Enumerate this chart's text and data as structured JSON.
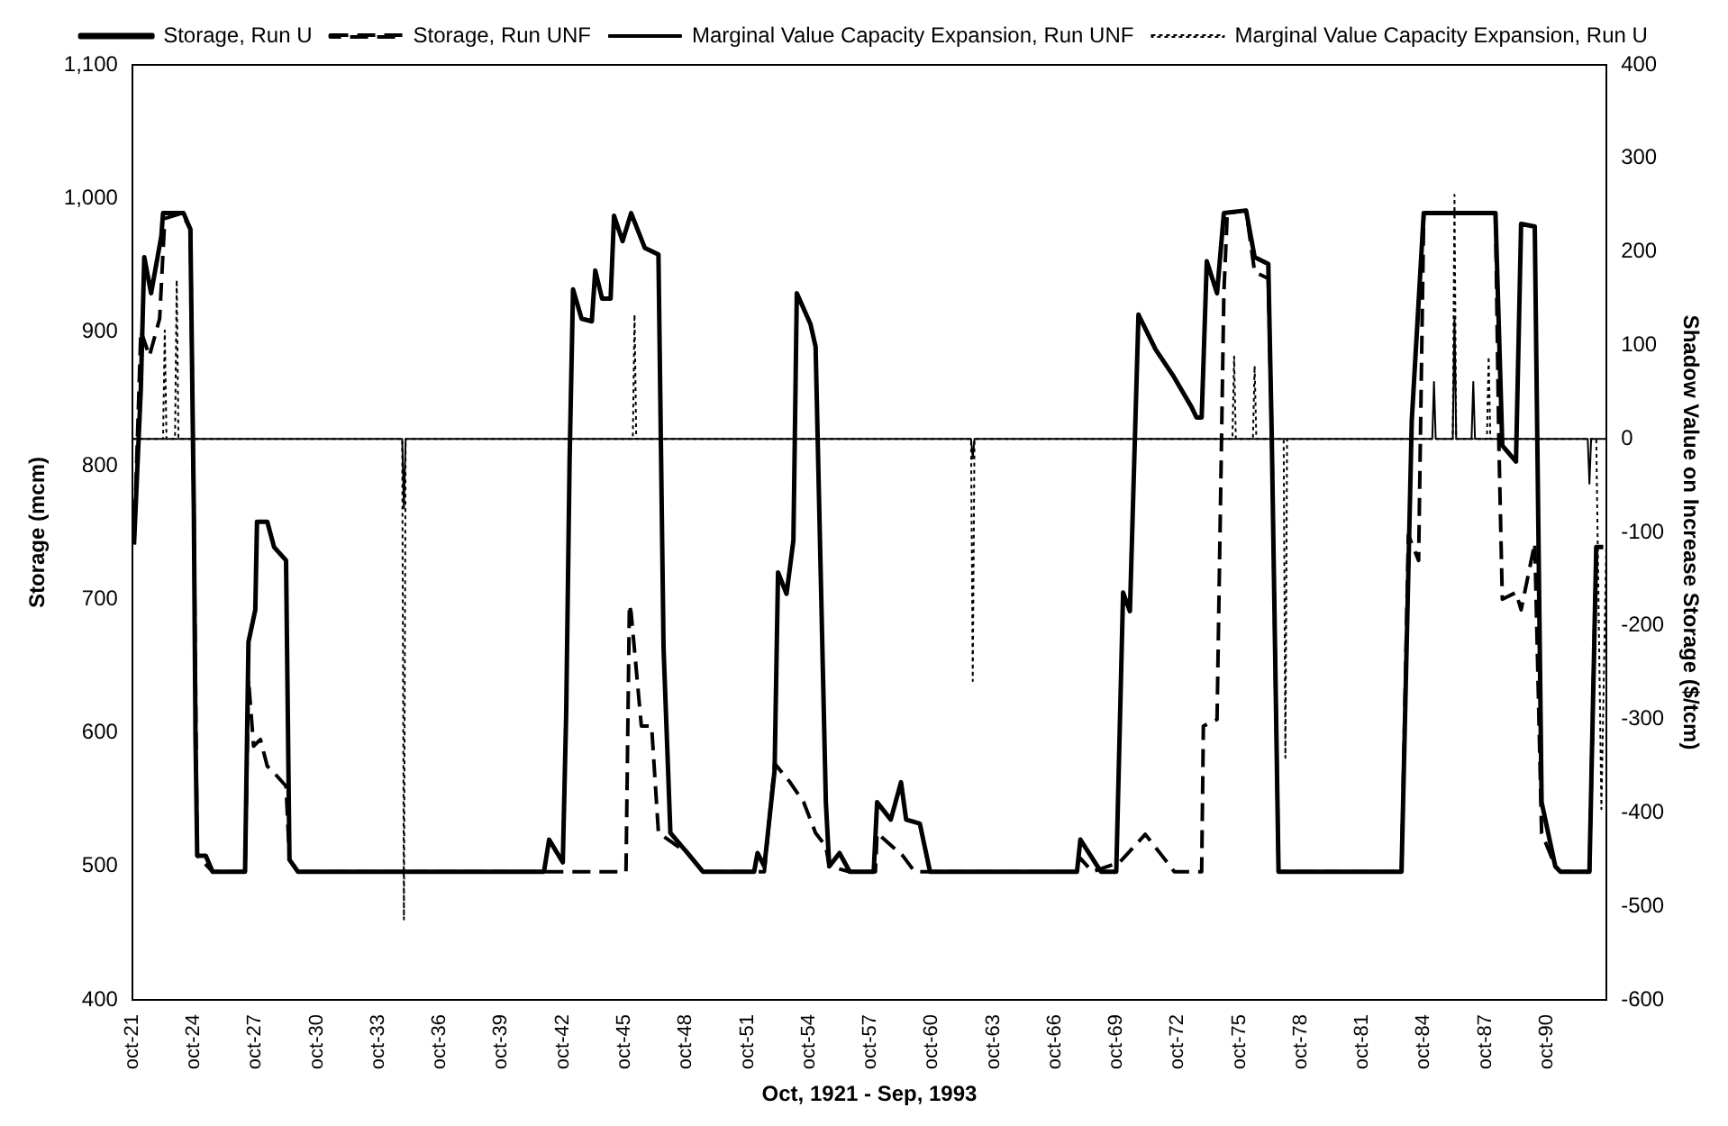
{
  "chart_data": {
    "type": "line",
    "xlabel": "Oct, 1921 - Sep, 1993",
    "ylabel": "Storage (mcm)",
    "y2label": "Shadow Value on Increase Storage ($/tcm)",
    "xlim": [
      "1921-10",
      "1993-09"
    ],
    "xticks": [
      {
        "value": "1921-10",
        "label": "oct-21"
      },
      {
        "value": "1924-10",
        "label": "oct-24"
      },
      {
        "value": "1927-10",
        "label": "oct-27"
      },
      {
        "value": "1930-10",
        "label": "oct-30"
      },
      {
        "value": "1933-10",
        "label": "oct-33"
      },
      {
        "value": "1936-10",
        "label": "oct-36"
      },
      {
        "value": "1939-10",
        "label": "oct-39"
      },
      {
        "value": "1942-10",
        "label": "oct-42"
      },
      {
        "value": "1945-10",
        "label": "oct-45"
      },
      {
        "value": "1948-10",
        "label": "oct-48"
      },
      {
        "value": "1951-10",
        "label": "oct-51"
      },
      {
        "value": "1954-10",
        "label": "oct-54"
      },
      {
        "value": "1957-10",
        "label": "oct-57"
      },
      {
        "value": "1960-10",
        "label": "oct-60"
      },
      {
        "value": "1963-10",
        "label": "oct-63"
      },
      {
        "value": "1966-10",
        "label": "oct-66"
      },
      {
        "value": "1969-10",
        "label": "oct-69"
      },
      {
        "value": "1972-10",
        "label": "oct-72"
      },
      {
        "value": "1975-10",
        "label": "oct-75"
      },
      {
        "value": "1978-10",
        "label": "oct-78"
      },
      {
        "value": "1981-10",
        "label": "oct-81"
      },
      {
        "value": "1984-10",
        "label": "oct-84"
      },
      {
        "value": "1987-10",
        "label": "oct-87"
      },
      {
        "value": "1990-10",
        "label": "oct-90"
      }
    ],
    "ylim": [
      400,
      1100
    ],
    "yticks": [
      400,
      500,
      600,
      700,
      800,
      900,
      {
        "value": 1000,
        "label": "1,000"
      },
      {
        "value": 1100,
        "label": "1,100"
      }
    ],
    "y2lim": [
      -600,
      400
    ],
    "y2ticks": [
      -600,
      -500,
      -400,
      -300,
      -200,
      -100,
      0,
      100,
      200,
      300,
      400
    ],
    "grid": false,
    "legend": "top",
    "marker": "none",
    "series": [
      {
        "name": "Storage, Run U",
        "color": "#000000",
        "line_style": "solid",
        "x": [
          "1921-11",
          "1922-03",
          "1922-05",
          "1922-09",
          "1923-03",
          "1923-04",
          "1924-04",
          "1924-08",
          "1924-10",
          "1924-11",
          "1924-12",
          "1925-05",
          "1925-09",
          "1927-04",
          "1927-06",
          "1927-10",
          "1927-11",
          "1928-05",
          "1928-09",
          "1929-04",
          "1929-06",
          "1929-11",
          "1941-11",
          "1942-02",
          "1942-10",
          "1942-12",
          "1943-02",
          "1943-04",
          "1943-09",
          "1944-03",
          "1944-05",
          "1944-09",
          "1945-02",
          "1945-04",
          "1945-09",
          "1946-02",
          "1946-10",
          "1947-06",
          "1947-09",
          "1948-01",
          "1948-11",
          "1949-08",
          "1952-02",
          "1952-04",
          "1952-08",
          "1953-02",
          "1953-04",
          "1953-09",
          "1954-01",
          "1954-03",
          "1954-11",
          "1955-02",
          "1955-08",
          "1955-10",
          "1956-04",
          "1956-10",
          "1957-12",
          "1958-02",
          "1958-10",
          "1959-04",
          "1959-07",
          "1960-03",
          "1960-09",
          "1967-11",
          "1968-01",
          "1968-07",
          "1969-01",
          "1969-10",
          "1970-02",
          "1970-06",
          "1970-11",
          "1971-09",
          "1972-07",
          "1973-06",
          "1973-09",
          "1973-12",
          "1974-03",
          "1974-09",
          "1975-01",
          "1976-02",
          "1976-07",
          "1977-03",
          "1977-05",
          "1977-09",
          "1983-09",
          "1984-03",
          "1984-10",
          "1988-04",
          "1988-08",
          "1989-04",
          "1989-07",
          "1990-03",
          "1990-07",
          "1991-03",
          "1991-06",
          "1992-11",
          "1993-03",
          "1993-07"
        ],
        "values": [
          741,
          858,
          956,
          929,
          972,
          989,
          989,
          977,
          768,
          596,
          508,
          508,
          496,
          496,
          668,
          692,
          758,
          758,
          739,
          729,
          505,
          496,
          496,
          520,
          503,
          615,
          805,
          932,
          910,
          908,
          946,
          925,
          925,
          987,
          968,
          989,
          963,
          958,
          663,
          525,
          510,
          496,
          496,
          510,
          500,
          572,
          720,
          704,
          744,
          929,
          906,
          889,
          548,
          500,
          510,
          496,
          496,
          548,
          535,
          563,
          535,
          532,
          496,
          496,
          520,
          508,
          496,
          496,
          705,
          691,
          913,
          887,
          868,
          844,
          836,
          836,
          953,
          929,
          989,
          991,
          956,
          951,
          824,
          496,
          496,
          834,
          989,
          989,
          815,
          803,
          981,
          979,
          548,
          500,
          496,
          496,
          739,
          739
        ]
      },
      {
        "name": "Storage, Run UNF",
        "color": "#000000",
        "line_style": "dashed",
        "x": [
          "1921-11",
          "1922-03",
          "1922-08",
          "1923-02",
          "1923-05",
          "1924-03",
          "1924-08",
          "1924-10",
          "1924-12",
          "1925-09",
          "1927-04",
          "1927-06",
          "1927-09",
          "1928-01",
          "1928-05",
          "1928-09",
          "1929-04",
          "1929-06",
          "1929-11",
          "1945-11",
          "1946-01",
          "1946-02",
          "1946-08",
          "1947-02",
          "1947-06",
          "1948-11",
          "1949-08",
          "1952-08",
          "1953-02",
          "1953-11",
          "1954-07",
          "1955-02",
          "1955-08",
          "1955-10",
          "1956-10",
          "1958-01",
          "1958-02",
          "1959-05",
          "1959-12",
          "1967-09",
          "1968-01",
          "1968-08",
          "1969-12",
          "1971-03",
          "1972-02",
          "1972-08",
          "1973-12",
          "1974-01",
          "1974-09",
          "1975-01",
          "1975-03",
          "1976-02",
          "1976-07",
          "1977-03",
          "1977-05",
          "1977-09",
          "1983-09",
          "1984-01",
          "1984-07",
          "1984-10",
          "1988-04",
          "1988-06",
          "1988-08",
          "1989-04",
          "1989-07",
          "1990-03",
          "1990-07",
          "1991-03",
          "1991-06",
          "1992-11",
          "1993-03",
          "1993-07"
        ],
        "values": [
          741,
          901,
          882,
          910,
          985,
          989,
          977,
          768,
          508,
          496,
          496,
          640,
          590,
          595,
          575,
          570,
          560,
          505,
          496,
          496,
          696,
          690,
          605,
          605,
          525,
          510,
          496,
          496,
          577,
          563,
          548,
          525,
          515,
          500,
          496,
          496,
          525,
          508,
          496,
          496,
          506,
          496,
          503,
          524,
          506,
          496,
          496,
          605,
          610,
          929,
          989,
          991,
          945,
          940,
          824,
          496,
          496,
          748,
          729,
          989,
          989,
          815,
          700,
          705,
          692,
          742,
          525,
          500,
          496,
          496,
          739,
          739
        ]
      },
      {
        "name": "Marginal Value Capacity Expansion, Run UNF",
        "color": "#000000",
        "line_style": "solid",
        "axis": "y2",
        "x": [
          "1921-10",
          "1934-12",
          "1935-01",
          "1935-02",
          "1962-09",
          "1962-10",
          "1962-11",
          "1985-03",
          "1985-04",
          "1985-05",
          "1986-03",
          "1986-04",
          "1986-05",
          "1987-02",
          "1987-03",
          "1987-04",
          "1992-10",
          "1992-11",
          "1992-12",
          "1993-09"
        ],
        "values": [
          0,
          0,
          -74,
          0,
          0,
          -21,
          0,
          0,
          61,
          0,
          0,
          130,
          0,
          0,
          61,
          0,
          0,
          -48,
          0,
          0
        ]
      },
      {
        "name": "Marginal Value Capacity Expansion, Run U",
        "color": "#000000",
        "line_style": "dotted",
        "axis": "y2",
        "x": [
          "1921-10",
          "1923-04",
          "1923-05",
          "1923-06",
          "1923-11",
          "1923-12",
          "1924-01",
          "1934-12",
          "1935-01",
          "1935-02",
          "1946-03",
          "1946-04",
          "1946-05",
          "1962-09",
          "1962-10",
          "1962-11",
          "1975-06",
          "1975-07",
          "1975-08",
          "1976-06",
          "1976-07",
          "1976-08",
          "1977-12",
          "1978-01",
          "1978-02",
          "1986-03",
          "1986-04",
          "1986-05",
          "1987-11",
          "1987-12",
          "1988-01",
          "1993-03",
          "1993-06",
          "1993-09"
        ],
        "values": [
          0,
          0,
          116,
          0,
          0,
          170,
          0,
          0,
          -514,
          0,
          0,
          133,
          0,
          0,
          -259,
          0,
          0,
          88,
          0,
          0,
          78,
          0,
          0,
          -341,
          0,
          0,
          261,
          0,
          0,
          88,
          0,
          0,
          -396,
          -100
        ]
      }
    ]
  }
}
